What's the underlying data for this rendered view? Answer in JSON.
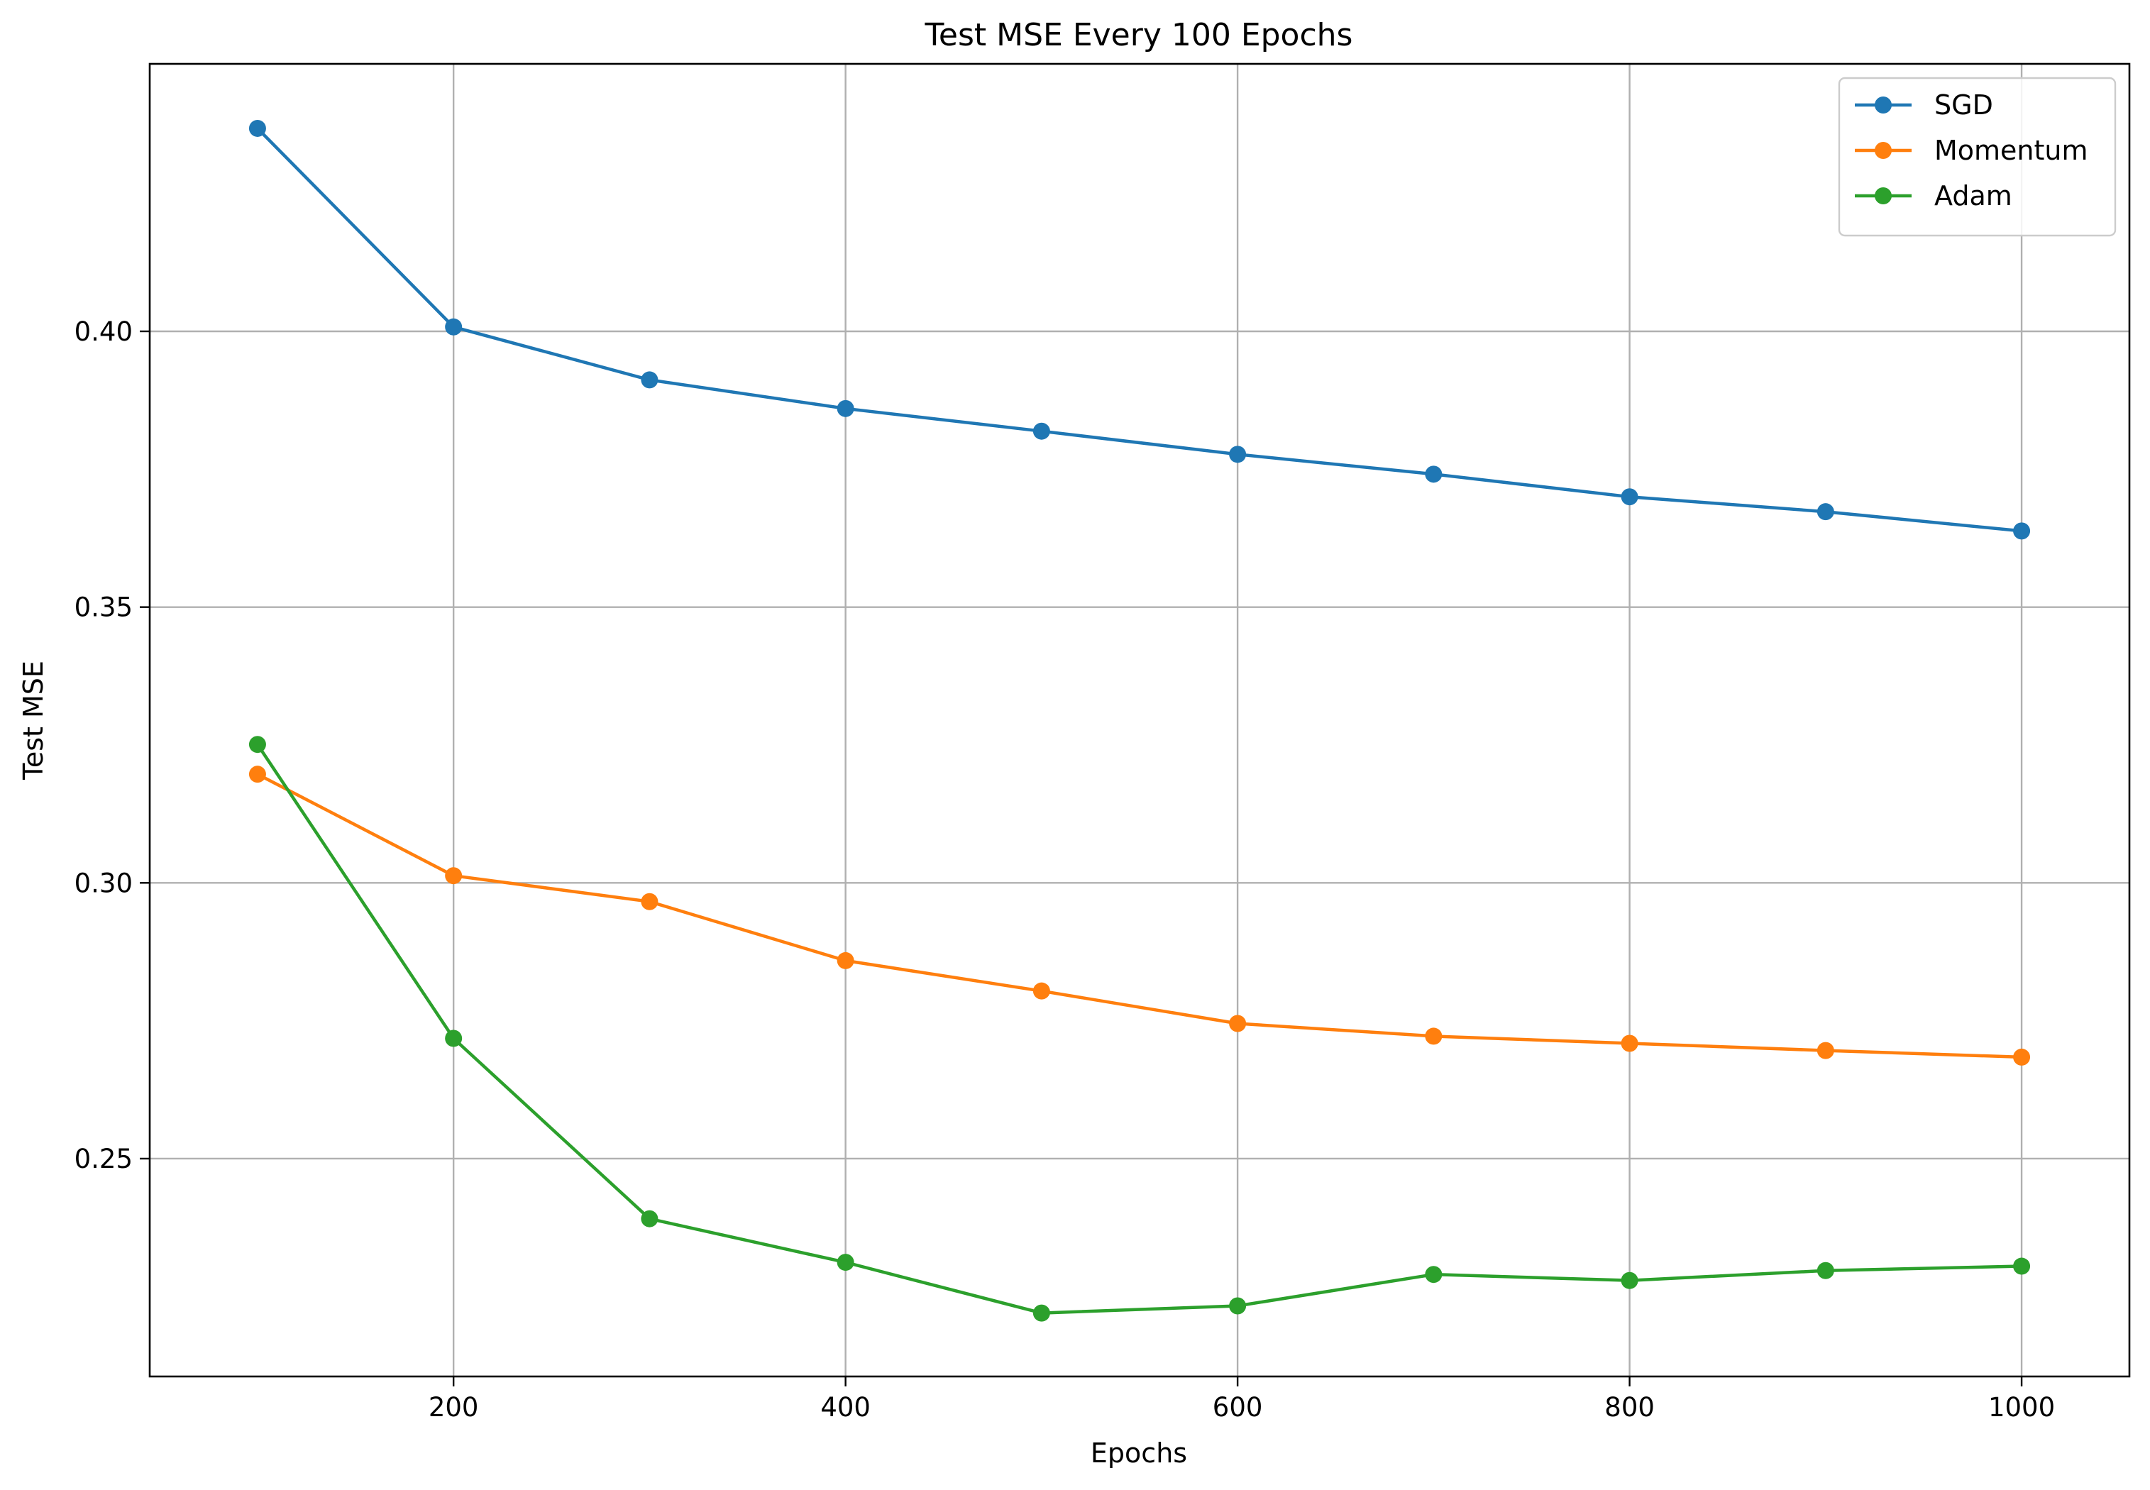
{
  "chart_data": {
    "type": "line",
    "title": "Test MSE Every 100 Epochs",
    "xlabel": "Epochs",
    "ylabel": "Test MSE",
    "xlim": [
      45,
      1055
    ],
    "ylim": [
      0.2105,
      0.4485
    ],
    "xticks": [
      200,
      400,
      600,
      800,
      1000
    ],
    "yticks": [
      0.25,
      0.3,
      0.35,
      0.4
    ],
    "grid": true,
    "legend_position": "top-right",
    "x": [
      100,
      200,
      300,
      400,
      500,
      600,
      700,
      800,
      900,
      1000
    ],
    "series": [
      {
        "name": "SGD",
        "color": "#1f77b4",
        "values": [
          0.4368,
          0.4008,
          0.3912,
          0.386,
          0.3819,
          0.3777,
          0.3741,
          0.37,
          0.3673,
          0.3638
        ]
      },
      {
        "name": "Momentum",
        "color": "#ff7f0e",
        "values": [
          0.3197,
          0.3013,
          0.2966,
          0.2859,
          0.2804,
          0.2745,
          0.2722,
          0.2709,
          0.2696,
          0.2684
        ]
      },
      {
        "name": "Adam",
        "color": "#2ca02c",
        "values": [
          0.3251,
          0.2718,
          0.2391,
          0.2312,
          0.222,
          0.2233,
          0.229,
          0.2279,
          0.2297,
          0.2305
        ]
      }
    ]
  }
}
